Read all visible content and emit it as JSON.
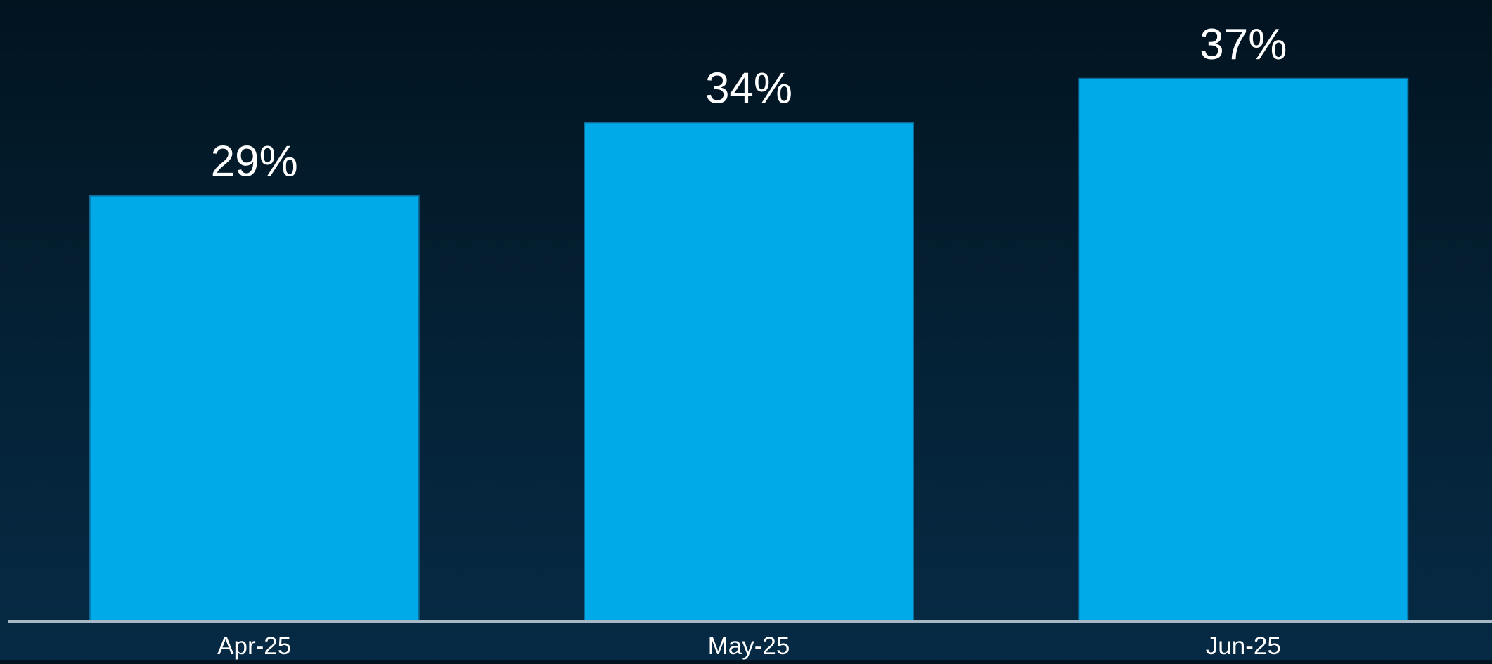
{
  "chart_data": {
    "type": "bar",
    "title": "",
    "xlabel": "",
    "ylabel": "",
    "categories": [
      "Apr-25",
      "May-25",
      "Jun-25"
    ],
    "values": [
      29,
      34,
      37
    ],
    "data_labels": [
      "29%",
      "34%",
      "37%"
    ],
    "ylim": [
      0,
      37.9
    ],
    "grid": false,
    "legend": "none",
    "colors": {
      "bar": "#00a9e8",
      "bar_edge": "#0d6b99",
      "baseline": "#a9b8c6",
      "text": "#ffffff"
    }
  }
}
